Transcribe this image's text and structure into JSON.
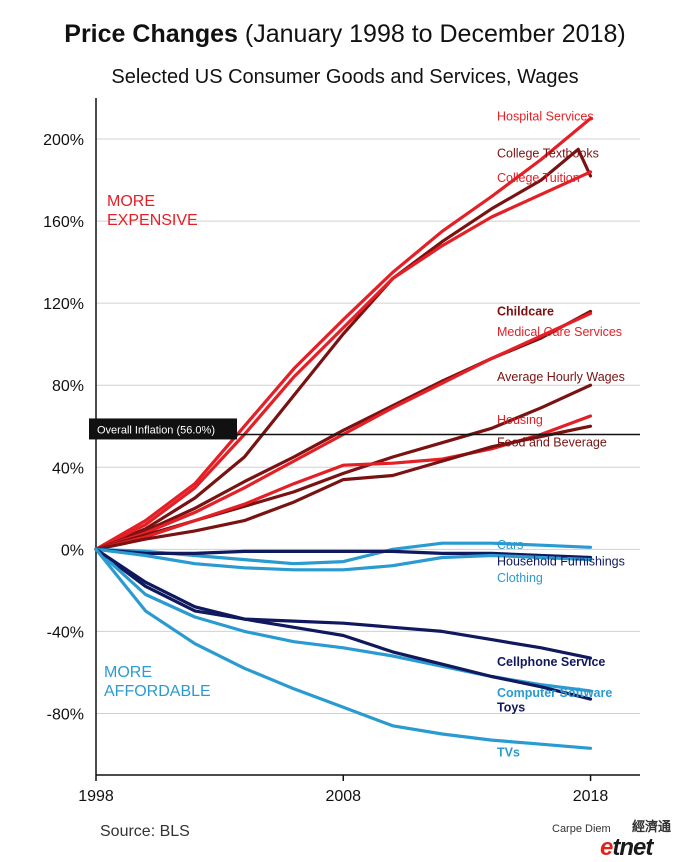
{
  "header": {
    "title_bold": "Price Changes",
    "title_rest": "(January 1998 to December 2018)",
    "subtitle": "Selected US Consumer Goods and Services, Wages"
  },
  "footer": {
    "source": "Source: BLS",
    "credit": "Carpe Diem",
    "brand_e": "e",
    "brand_rest": "tnet",
    "brand_cn": "經濟通"
  },
  "colors": {
    "red": "#e41f26",
    "dark_red": "#7a1212",
    "light_blue": "#2a9bd1",
    "navy": "#10185e",
    "inflation_line": "#111111",
    "grid": "#d0d0d0"
  },
  "chart_data": {
    "type": "line",
    "title": "Price Changes (January 1998 to December 2018)",
    "subtitle": "Selected US Consumer Goods and Services, Wages",
    "xlim": [
      1998,
      2020
    ],
    "ylim": [
      -110,
      220
    ],
    "x_ticks": [
      1998,
      2008,
      2018
    ],
    "y_ticks": [
      200,
      160,
      120,
      80,
      40,
      0,
      -40,
      -80
    ],
    "y_tick_labels": [
      "200%",
      "160%",
      "120%",
      "80%",
      "40%",
      "0%",
      "-40%",
      "-80%"
    ],
    "grid": "horizontal",
    "annotations": {
      "more_expensive": "MORE\nEXPENSIVE",
      "more_affordable": "MORE\nAFFORDABLE",
      "inflation_label": "Overall Inflation (56.0%)",
      "inflation_value": 56.0
    },
    "series": [
      {
        "name": "Hospital Services",
        "color": "red",
        "bold": false,
        "points": [
          [
            1998,
            0
          ],
          [
            2000,
            14
          ],
          [
            2002,
            32
          ],
          [
            2004,
            60
          ],
          [
            2006,
            88
          ],
          [
            2008,
            112
          ],
          [
            2010,
            135
          ],
          [
            2012,
            155
          ],
          [
            2014,
            172
          ],
          [
            2016,
            190
          ],
          [
            2018,
            210
          ]
        ]
      },
      {
        "name": "College Textbooks",
        "color": "dark_red",
        "bold": false,
        "points": [
          [
            1998,
            0
          ],
          [
            2000,
            10
          ],
          [
            2002,
            25
          ],
          [
            2004,
            45
          ],
          [
            2006,
            75
          ],
          [
            2008,
            105
          ],
          [
            2010,
            132
          ],
          [
            2012,
            150
          ],
          [
            2014,
            166
          ],
          [
            2016,
            180
          ],
          [
            2017.5,
            195
          ],
          [
            2018,
            182
          ]
        ]
      },
      {
        "name": "College Tuition",
        "color": "red",
        "bold": false,
        "points": [
          [
            1998,
            0
          ],
          [
            2000,
            12
          ],
          [
            2002,
            30
          ],
          [
            2004,
            56
          ],
          [
            2006,
            84
          ],
          [
            2008,
            108
          ],
          [
            2010,
            132
          ],
          [
            2012,
            148
          ],
          [
            2014,
            162
          ],
          [
            2016,
            173
          ],
          [
            2018,
            184
          ]
        ]
      },
      {
        "name": "Childcare",
        "color": "dark_red",
        "bold": true,
        "points": [
          [
            1998,
            0
          ],
          [
            2000,
            9
          ],
          [
            2002,
            20
          ],
          [
            2004,
            33
          ],
          [
            2006,
            45
          ],
          [
            2008,
            58
          ],
          [
            2010,
            70
          ],
          [
            2012,
            82
          ],
          [
            2014,
            93
          ],
          [
            2016,
            103
          ],
          [
            2018,
            116
          ]
        ]
      },
      {
        "name": "Medical Care Services",
        "color": "red",
        "bold": false,
        "points": [
          [
            1998,
            0
          ],
          [
            2000,
            8
          ],
          [
            2002,
            18
          ],
          [
            2004,
            30
          ],
          [
            2006,
            43
          ],
          [
            2008,
            56
          ],
          [
            2010,
            69
          ],
          [
            2012,
            81
          ],
          [
            2014,
            93
          ],
          [
            2016,
            104
          ],
          [
            2018,
            115
          ]
        ]
      },
      {
        "name": "Average Hourly Wages",
        "color": "dark_red",
        "bold": false,
        "points": [
          [
            1998,
            0
          ],
          [
            2000,
            7
          ],
          [
            2002,
            14
          ],
          [
            2004,
            21
          ],
          [
            2006,
            28
          ],
          [
            2008,
            37
          ],
          [
            2010,
            45
          ],
          [
            2012,
            52
          ],
          [
            2014,
            59
          ],
          [
            2016,
            69
          ],
          [
            2018,
            80
          ]
        ]
      },
      {
        "name": "Housing",
        "color": "red",
        "bold": false,
        "points": [
          [
            1998,
            0
          ],
          [
            2000,
            6
          ],
          [
            2002,
            14
          ],
          [
            2004,
            22
          ],
          [
            2006,
            32
          ],
          [
            2008,
            41
          ],
          [
            2010,
            42
          ],
          [
            2012,
            44
          ],
          [
            2014,
            49
          ],
          [
            2016,
            56
          ],
          [
            2018,
            65
          ]
        ]
      },
      {
        "name": "Food and Beverage",
        "color": "dark_red",
        "bold": false,
        "points": [
          [
            1998,
            0
          ],
          [
            2000,
            5
          ],
          [
            2002,
            9
          ],
          [
            2004,
            14
          ],
          [
            2006,
            23
          ],
          [
            2008,
            34
          ],
          [
            2010,
            36
          ],
          [
            2012,
            43
          ],
          [
            2014,
            50
          ],
          [
            2016,
            55
          ],
          [
            2018,
            60
          ]
        ]
      },
      {
        "name": "Cars",
        "color": "light_blue",
        "bold": false,
        "points": [
          [
            1998,
            0
          ],
          [
            2000,
            -1
          ],
          [
            2002,
            -3
          ],
          [
            2004,
            -5
          ],
          [
            2006,
            -7
          ],
          [
            2008,
            -6
          ],
          [
            2010,
            0
          ],
          [
            2012,
            3
          ],
          [
            2014,
            3
          ],
          [
            2016,
            2
          ],
          [
            2018,
            1
          ]
        ]
      },
      {
        "name": "Household Furnishings",
        "color": "navy",
        "bold": false,
        "points": [
          [
            1998,
            0
          ],
          [
            2000,
            -2
          ],
          [
            2002,
            -2
          ],
          [
            2004,
            -1
          ],
          [
            2006,
            -1
          ],
          [
            2008,
            -1
          ],
          [
            2010,
            -1
          ],
          [
            2012,
            -2
          ],
          [
            2014,
            -2
          ],
          [
            2016,
            -3
          ],
          [
            2018,
            -4
          ]
        ]
      },
      {
        "name": "Clothing",
        "color": "light_blue",
        "bold": false,
        "points": [
          [
            1998,
            0
          ],
          [
            2000,
            -3
          ],
          [
            2002,
            -7
          ],
          [
            2004,
            -9
          ],
          [
            2006,
            -10
          ],
          [
            2008,
            -10
          ],
          [
            2010,
            -8
          ],
          [
            2012,
            -4
          ],
          [
            2014,
            -3
          ],
          [
            2016,
            -4
          ],
          [
            2018,
            -5
          ]
        ]
      },
      {
        "name": "Cellphone Service",
        "color": "navy",
        "bold": true,
        "points": [
          [
            1998,
            0
          ],
          [
            2000,
            -18
          ],
          [
            2002,
            -30
          ],
          [
            2004,
            -34
          ],
          [
            2006,
            -35
          ],
          [
            2008,
            -36
          ],
          [
            2010,
            -38
          ],
          [
            2012,
            -40
          ],
          [
            2014,
            -44
          ],
          [
            2016,
            -48
          ],
          [
            2018,
            -53
          ]
        ]
      },
      {
        "name": "Computer Software",
        "color": "light_blue",
        "bold": true,
        "points": [
          [
            1998,
            0
          ],
          [
            2000,
            -22
          ],
          [
            2002,
            -33
          ],
          [
            2004,
            -40
          ],
          [
            2006,
            -45
          ],
          [
            2008,
            -48
          ],
          [
            2010,
            -52
          ],
          [
            2012,
            -57
          ],
          [
            2014,
            -62
          ],
          [
            2016,
            -66
          ],
          [
            2018,
            -69
          ]
        ]
      },
      {
        "name": "Toys",
        "color": "navy",
        "bold": true,
        "points": [
          [
            1998,
            0
          ],
          [
            2000,
            -16
          ],
          [
            2002,
            -28
          ],
          [
            2004,
            -34
          ],
          [
            2006,
            -38
          ],
          [
            2008,
            -42
          ],
          [
            2010,
            -50
          ],
          [
            2012,
            -56
          ],
          [
            2014,
            -62
          ],
          [
            2016,
            -67
          ],
          [
            2018,
            -73
          ]
        ]
      },
      {
        "name": "TVs",
        "color": "light_blue",
        "bold": true,
        "points": [
          [
            1998,
            0
          ],
          [
            2000,
            -30
          ],
          [
            2002,
            -46
          ],
          [
            2004,
            -58
          ],
          [
            2006,
            -68
          ],
          [
            2008,
            -77
          ],
          [
            2010,
            -86
          ],
          [
            2012,
            -90
          ],
          [
            2014,
            -93
          ],
          [
            2016,
            -95
          ],
          [
            2018,
            -97
          ]
        ]
      }
    ]
  }
}
